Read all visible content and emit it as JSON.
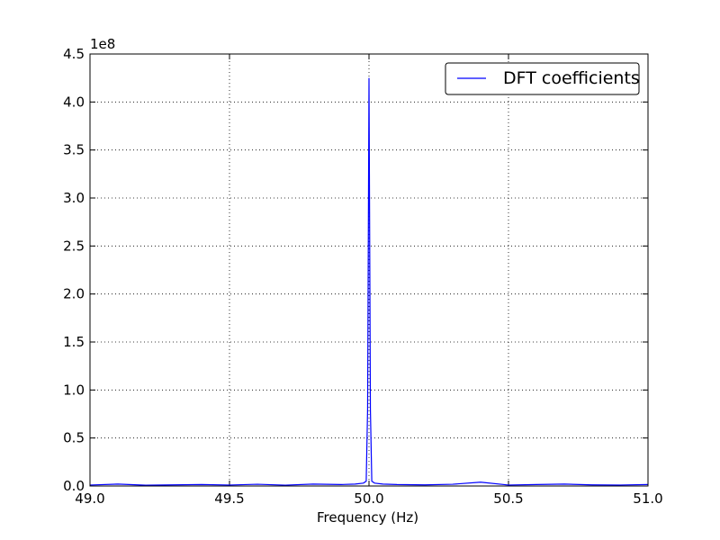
{
  "chart_data": {
    "type": "line",
    "xlabel": "Frequency (Hz)",
    "y_offset_label": "1e8",
    "x": [
      49.0,
      49.1,
      49.2,
      49.3,
      49.4,
      49.5,
      49.6,
      49.7,
      49.8,
      49.9,
      49.95,
      49.98,
      49.99,
      49.995,
      50.0,
      50.005,
      50.01,
      50.02,
      50.05,
      50.1,
      50.2,
      50.3,
      50.4,
      50.5,
      50.6,
      50.7,
      50.8,
      50.9,
      51.0
    ],
    "series": [
      {
        "name": "DFT coefficients",
        "color": "#0000ff",
        "values": [
          0.01,
          0.02,
          0.008,
          0.012,
          0.015,
          0.01,
          0.018,
          0.009,
          0.02,
          0.015,
          0.02,
          0.03,
          0.05,
          0.8,
          4.25,
          0.8,
          0.05,
          0.03,
          0.02,
          0.015,
          0.012,
          0.018,
          0.04,
          0.01,
          0.015,
          0.02,
          0.012,
          0.01,
          0.015
        ]
      }
    ],
    "xlim": [
      49.0,
      51.0
    ],
    "xticks": [
      {
        "value": 49.0,
        "label": "49.0"
      },
      49.5,
      {
        "value": 50.0,
        "label": "50.0"
      },
      50.5,
      {
        "value": 51.0,
        "label": "51.0"
      }
    ],
    "ylim": [
      0,
      4.5
    ],
    "yticks": [
      {
        "value": 0,
        "label": "0.0"
      },
      0.5,
      {
        "value": 1,
        "label": "1.0"
      },
      1.5,
      {
        "value": 2,
        "label": "2.0"
      },
      2.5,
      {
        "value": 3,
        "label": "3.0"
      },
      3.5,
      {
        "value": 4,
        "label": "4.0"
      },
      4.5
    ],
    "grid": true,
    "legend": "upper right"
  }
}
